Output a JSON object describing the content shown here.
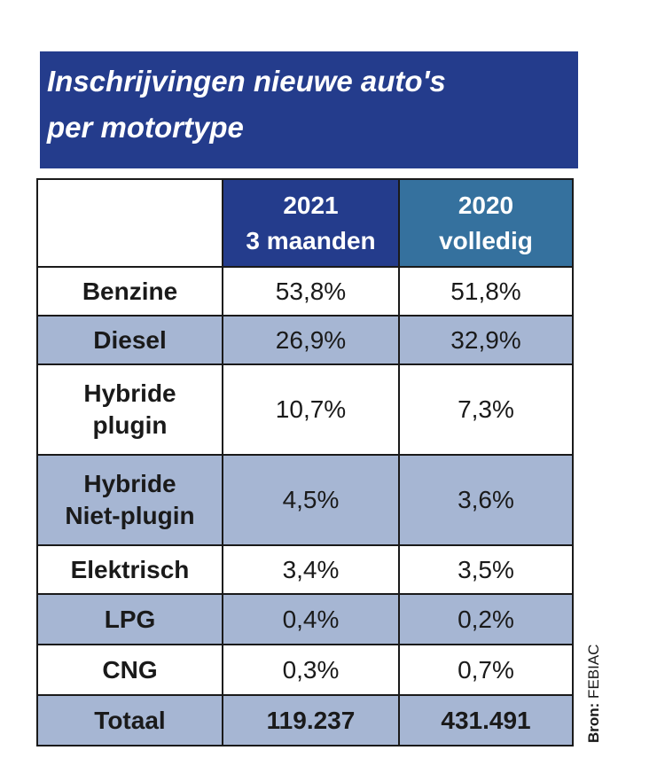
{
  "title": {
    "line1": "Inschrijvingen nieuwe auto's",
    "line2": "per motortype"
  },
  "columns": [
    {
      "line1": "2021",
      "line2": "3 maanden",
      "color": "#243c8c"
    },
    {
      "line1": "2020",
      "line2": "volledig",
      "color": "#35719e"
    }
  ],
  "source": {
    "prefix": "Bron:",
    "name": "FEBIAC"
  },
  "chart_data": {
    "type": "table",
    "title": "Inschrijvingen nieuwe auto's per motortype",
    "columns": [
      "2021 3 maanden",
      "2020 volledig"
    ],
    "rows": [
      {
        "label": [
          "Benzine"
        ],
        "values": [
          "53,8%",
          "51,8%"
        ]
      },
      {
        "label": [
          "Diesel"
        ],
        "values": [
          "26,9%",
          "32,9%"
        ]
      },
      {
        "label": [
          "Hybride",
          "plugin"
        ],
        "values": [
          "10,7%",
          "7,3%"
        ]
      },
      {
        "label": [
          "Hybride",
          "Niet-plugin"
        ],
        "values": [
          "4,5%",
          "3,6%"
        ]
      },
      {
        "label": [
          "Elektrisch"
        ],
        "values": [
          "3,4%",
          "3,5%"
        ]
      },
      {
        "label": [
          "LPG"
        ],
        "values": [
          "0,4%",
          "0,2%"
        ]
      },
      {
        "label": [
          "CNG"
        ],
        "values": [
          "0,3%",
          "0,7%"
        ]
      },
      {
        "label": [
          "Totaal"
        ],
        "values": [
          "119.237",
          "431.491"
        ]
      }
    ],
    "shade_color": "#a6b6d3"
  }
}
